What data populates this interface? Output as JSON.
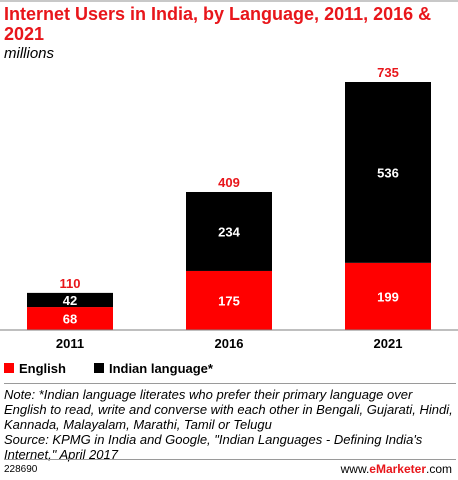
{
  "title": "Internet Users in India, by Language, 2011, 2016 & 2021",
  "subtitle": "millions",
  "chart_data": {
    "type": "bar",
    "stacked": true,
    "categories": [
      "2011",
      "2016",
      "2021"
    ],
    "series": [
      {
        "name": "English",
        "color": "#ff0000",
        "values": [
          68,
          175,
          199
        ]
      },
      {
        "name": "Indian language*",
        "color": "#000000",
        "values": [
          42,
          234,
          536
        ]
      }
    ],
    "totals": [
      110,
      409,
      735
    ],
    "total_label_color": "#e8161b",
    "ylim": [
      0,
      735
    ],
    "grid": false,
    "legend": "bottom-left"
  },
  "legend": {
    "english": "English",
    "indian": "Indian language*"
  },
  "note": "Note: *Indian language literates who prefer their primary language over English to read, write and converse with each other in Bengali, Gujarati, Hindi, Kannada, Malayalam, Marathi, Tamil or Telugu",
  "source": "Source: KPMG in India and Google, \"Indian Languages - Defining India's Internet,\" April 2017",
  "footer": {
    "id": "228690",
    "brand_prefix": "www.",
    "brand_name": "eMarketer",
    "brand_suffix": ".com"
  }
}
